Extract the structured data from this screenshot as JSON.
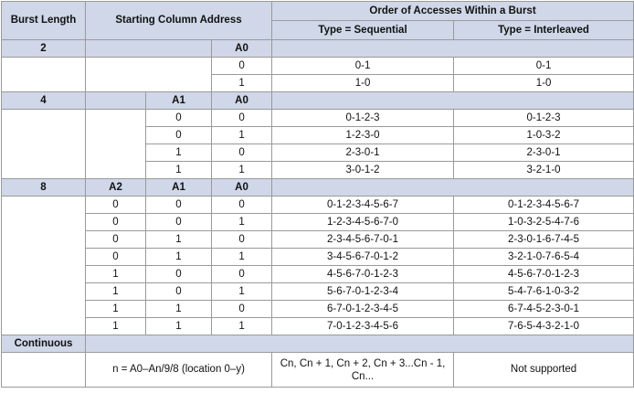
{
  "headers": {
    "burst_length": "Burst Length",
    "starting_column_address": "Starting Column Address",
    "order_of_accesses": "Order of Accesses Within a Burst",
    "type_sequential": "Type = Sequential",
    "type_interleaved": "Type = Interleaved"
  },
  "bl2": {
    "length": "2",
    "a0": "A0",
    "rows": [
      {
        "a0": "0",
        "seq": "0-1",
        "int": "0-1"
      },
      {
        "a0": "1",
        "seq": "1-0",
        "int": "1-0"
      }
    ]
  },
  "bl4": {
    "length": "4",
    "a1": "A1",
    "a0": "A0",
    "rows": [
      {
        "a1": "0",
        "a0": "0",
        "seq": "0-1-2-3",
        "int": "0-1-2-3"
      },
      {
        "a1": "0",
        "a0": "1",
        "seq": "1-2-3-0",
        "int": "1-0-3-2"
      },
      {
        "a1": "1",
        "a0": "0",
        "seq": "2-3-0-1",
        "int": "2-3-0-1"
      },
      {
        "a1": "1",
        "a0": "1",
        "seq": "3-0-1-2",
        "int": "3-2-1-0"
      }
    ]
  },
  "bl8": {
    "length": "8",
    "a2": "A2",
    "a1": "A1",
    "a0": "A0",
    "rows": [
      {
        "a2": "0",
        "a1": "0",
        "a0": "0",
        "seq": "0-1-2-3-4-5-6-7",
        "int": "0-1-2-3-4-5-6-7"
      },
      {
        "a2": "0",
        "a1": "0",
        "a0": "1",
        "seq": "1-2-3-4-5-6-7-0",
        "int": "1-0-3-2-5-4-7-6"
      },
      {
        "a2": "0",
        "a1": "1",
        "a0": "0",
        "seq": "2-3-4-5-6-7-0-1",
        "int": "2-3-0-1-6-7-4-5"
      },
      {
        "a2": "0",
        "a1": "1",
        "a0": "1",
        "seq": "3-4-5-6-7-0-1-2",
        "int": "3-2-1-0-7-6-5-4"
      },
      {
        "a2": "1",
        "a1": "0",
        "a0": "0",
        "seq": "4-5-6-7-0-1-2-3",
        "int": "4-5-6-7-0-1-2-3"
      },
      {
        "a2": "1",
        "a1": "0",
        "a0": "1",
        "seq": "5-6-7-0-1-2-3-4",
        "int": "5-4-7-6-1-0-3-2"
      },
      {
        "a2": "1",
        "a1": "1",
        "a0": "0",
        "seq": "6-7-0-1-2-3-4-5",
        "int": "6-7-4-5-2-3-0-1"
      },
      {
        "a2": "1",
        "a1": "1",
        "a0": "1",
        "seq": "7-0-1-2-3-4-5-6",
        "int": "7-6-5-4-3-2-1-0"
      }
    ]
  },
  "continuous": {
    "label": "Continuous",
    "address": "n = A0–An/9/8 (location 0–y)",
    "seq": "Cn, Cn + 1, Cn + 2, Cn + 3...Cn - 1, Cn...",
    "int": "Not supported"
  }
}
